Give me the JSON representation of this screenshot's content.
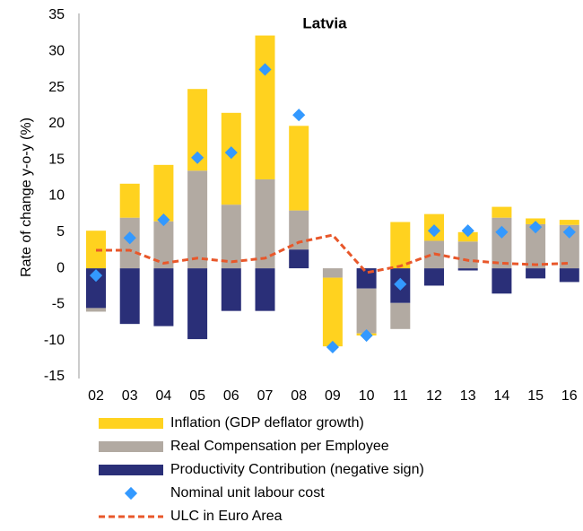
{
  "chart_data": {
    "type": "bar",
    "title": "Latvia",
    "y_label": "Rate of change y-o-y (%)",
    "categories": [
      "02",
      "03",
      "04",
      "05",
      "06",
      "07",
      "08",
      "09",
      "10",
      "11",
      "12",
      "13",
      "14",
      "15",
      "16"
    ],
    "ylim": [
      -15,
      35
    ],
    "yticks": [
      -15,
      -10,
      -5,
      0,
      5,
      10,
      15,
      20,
      25,
      30,
      35
    ],
    "grid": false,
    "legend": "bottom",
    "series": [
      {
        "name": "Inflation (GDP deflator growth)",
        "style": "bar",
        "color": "#ffd21f",
        "values": [
          5.2,
          4.7,
          7.8,
          11.3,
          12.7,
          19.9,
          11.7,
          -9.5,
          -0.3,
          6.4,
          3.7,
          1.3,
          1.5,
          0.8,
          0.7
        ]
      },
      {
        "name": "Real Compensation per Employee",
        "style": "bar",
        "color": "#b2aaa2",
        "values": [
          -0.5,
          7,
          6.5,
          13.5,
          8.8,
          12.3,
          5.4,
          -1.3,
          -6.2,
          -3.6,
          3.8,
          3.7,
          7,
          6.1,
          6
        ]
      },
      {
        "name": "Productivity Contribution (negative sign)",
        "style": "bar",
        "color": "#2a2f78",
        "values": [
          -5.5,
          -7.7,
          -8,
          -9.8,
          -5.9,
          -5.9,
          2.6,
          0,
          -2.8,
          -4.8,
          -2.4,
          -0.3,
          -3.5,
          -1.4,
          -1.9
        ]
      },
      {
        "name": "Nominal unit labour cost",
        "style": "marker",
        "color": "#3399ff",
        "values": [
          -1,
          4.2,
          6.7,
          15.3,
          16,
          27.5,
          21.2,
          -10.9,
          -9.3,
          -2.2,
          5.2,
          5.2,
          5,
          5.7,
          5
        ]
      },
      {
        "name": "ULC in Euro Area",
        "style": "dashed-line",
        "color": "#e8572a",
        "values": [
          2.5,
          2.5,
          0.7,
          1.4,
          0.9,
          1.4,
          3.6,
          4.6,
          -0.6,
          0.3,
          2,
          1.1,
          0.7,
          0.5,
          0.7
        ]
      }
    ]
  }
}
